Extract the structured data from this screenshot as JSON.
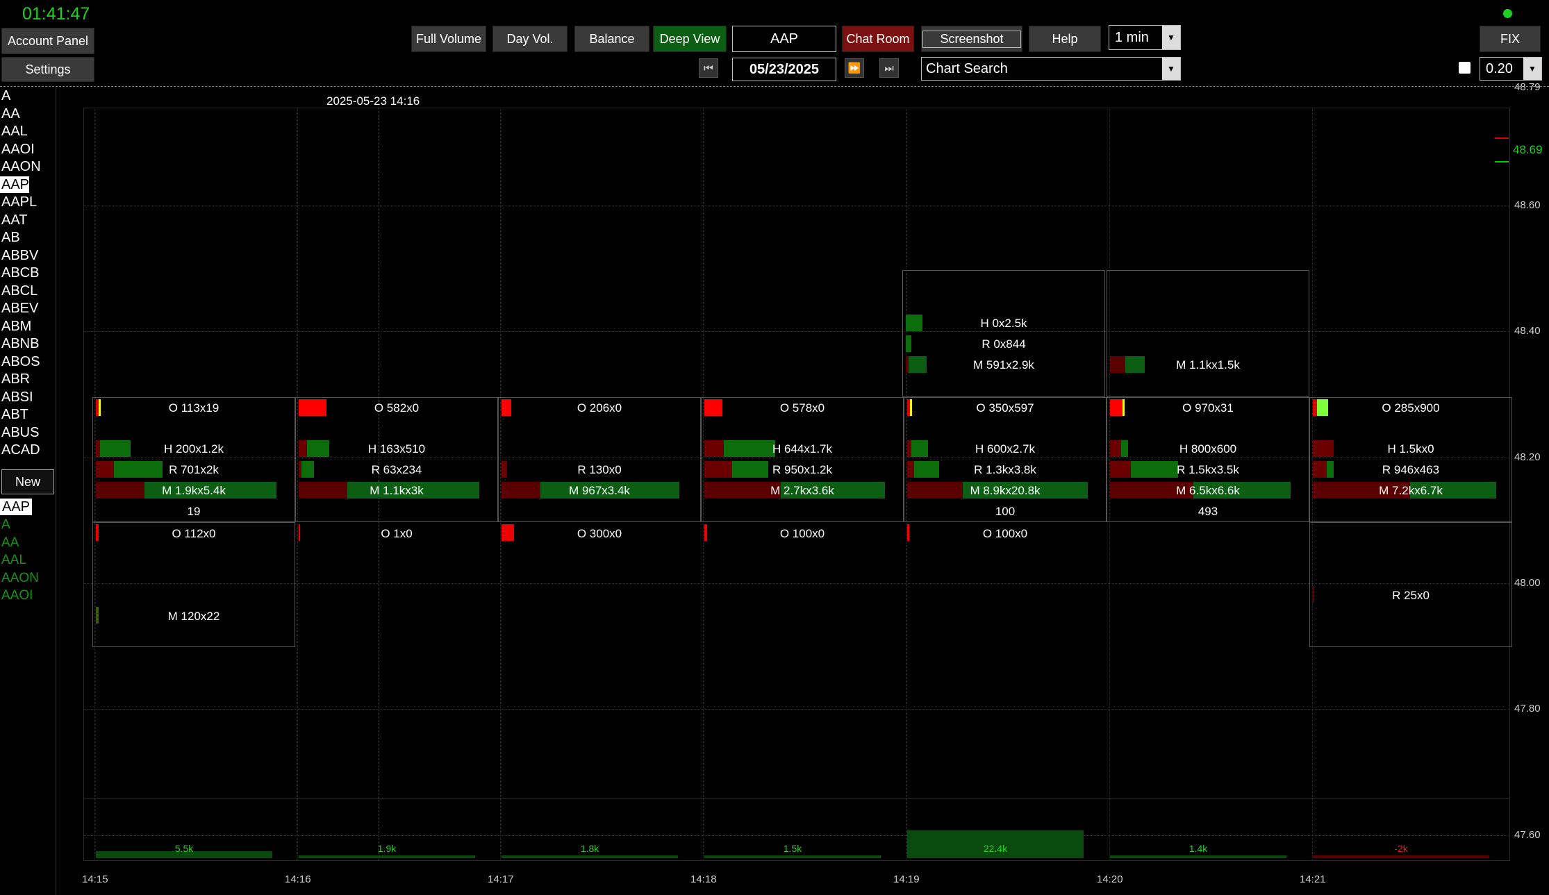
{
  "clock": "01:41:47",
  "left_buttons": {
    "account_panel": "Account Panel",
    "settings": "Settings",
    "new": "New"
  },
  "toolbar": {
    "full_volume": "Full Volume",
    "day_vol": "Day Vol.",
    "balance": "Balance",
    "deep_view": "Deep View",
    "symbol": "AAP",
    "chat_room": "Chat Room",
    "screenshot": "Screenshot",
    "help": "Help",
    "interval": "1 min",
    "date": "05/23/2025",
    "chart_search": "Chart Search",
    "fix": "FIX",
    "size": "0.20"
  },
  "symbols": [
    "A",
    "AA",
    "AAL",
    "AAOI",
    "AAON",
    "AAP",
    "AAPL",
    "AAT",
    "AB",
    "ABBV",
    "ABCB",
    "ABCL",
    "ABEV",
    "ABM",
    "ABNB",
    "ABOS",
    "ABR",
    "ABSI",
    "ABT",
    "ABUS",
    "ACAD"
  ],
  "selected_symbol": "AAP",
  "watchlist": {
    "header": "AAP",
    "items": [
      "A",
      "AA",
      "AAL",
      "AAON",
      "AAOI"
    ]
  },
  "chart": {
    "cursor_label": "2025-05-23 14:16",
    "price_labels": [
      "48.79",
      "48.60",
      "48.40",
      "48.20",
      "48.00",
      "47.80",
      "47.60"
    ],
    "last_price": "48.69",
    "time_labels": [
      "14:15",
      "14:16",
      "14:17",
      "14:18",
      "14:19",
      "14:20",
      "14:21"
    ],
    "upper_row": [
      {
        "h": "H 0x2.5k",
        "r": "R 0x844",
        "m": "M 591x2.9k"
      },
      {
        "m": "M 1.1kx1.5k"
      }
    ],
    "mid_row": [
      {
        "o": "O 113x19",
        "h": "H 200x1.2k",
        "r": "R 701x2k",
        "m": "M 1.9kx5.4k",
        "n": "19"
      },
      {
        "o": "O 582x0",
        "h": "H 163x510",
        "r": "R 63x234",
        "m": "M 1.1kx3k"
      },
      {
        "o": "O 206x0",
        "r": "R 130x0",
        "m": "M 967x3.4k"
      },
      {
        "o": "O 578x0",
        "h": "H 644x1.7k",
        "r": "R 950x1.2k",
        "m": "M 2.7kx3.6k"
      },
      {
        "o": "O 350x597",
        "h": "H 600x2.7k",
        "r": "R 1.3kx3.8k",
        "m": "M 8.9kx20.8k",
        "n": "100"
      },
      {
        "o": "O 970x31",
        "h": "H 800x600",
        "r": "R 1.5kx3.5k",
        "m": "M 6.5kx6.6k",
        "n": "493"
      },
      {
        "o": "O 285x900",
        "h": "H 1.5kx0",
        "r": "R 946x463",
        "m": "M 7.2kx6.7k"
      }
    ],
    "low_row": [
      {
        "o": "O 112x0",
        "m": "M 120x22"
      },
      {
        "o": "O 1x0"
      },
      {
        "o": "O 300x0"
      },
      {
        "o": "O 100x0"
      },
      {
        "o": "O 100x0"
      },
      {
        "r": "R 25x0"
      }
    ],
    "volumes": [
      "5.5k",
      "1.9k",
      "1.8k",
      "1.5k",
      "22.4k",
      "1.4k",
      "-2k"
    ]
  }
}
